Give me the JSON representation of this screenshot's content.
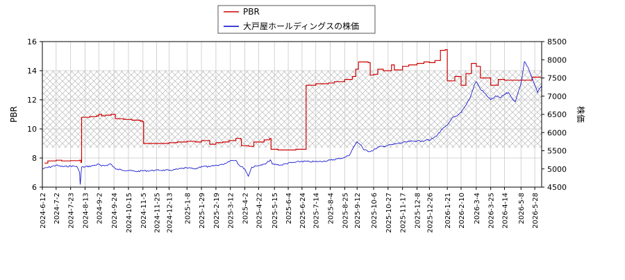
{
  "chart_data": {
    "type": "line",
    "legend": {
      "placement": "top-center",
      "entries": [
        {
          "label": "PBR",
          "color": "#cc0000"
        },
        {
          "label": "大戸屋ホールディングスの株価",
          "color": "#0000cc"
        }
      ]
    },
    "ylabel_left": "PBR",
    "ylabel_right": "株価",
    "ylim_left": [
      6,
      16
    ],
    "ylim_right": [
      4500,
      8500
    ],
    "yticks_left": [
      "6",
      "8",
      "10",
      "12",
      "14",
      "16"
    ],
    "yticks_right": [
      "4500",
      "5000",
      "5500",
      "6000",
      "6500",
      "7000",
      "7500",
      "8000",
      "8500"
    ],
    "grid": true,
    "shaded_band_pbr": [
      8.7,
      14.0
    ],
    "x_range": [
      "2024-06-12",
      "2026-06-07"
    ],
    "xticks": [
      "2024-6-12",
      "2024-7-2",
      "2024-7-23",
      "2024-8-13",
      "2024-9-2",
      "2024-9-24",
      "2024-10-15",
      "2024-11-5",
      "2024-11-25",
      "2024-12-13",
      "2025-1-8",
      "2025-1-29",
      "2025-2-19",
      "2025-3-12",
      "2025-4-2",
      "2025-4-22",
      "2025-5-15",
      "2025-6-4",
      "2025-6-24",
      "2025-7-14",
      "2025-8-4",
      "2025-8-25",
      "2025-9-12",
      "2025-10-6",
      "2025-10-27",
      "2025-11-17",
      "2025-12-8",
      "2025-12-26",
      "2026-1-21",
      "2026-2-10",
      "2026-3-4",
      "2026-3-25",
      "2026-4-14",
      "2026-5-8",
      "2026-5-28"
    ],
    "series": [
      {
        "name": "PBR",
        "axis": "left",
        "color": "#cc0000",
        "points": [
          [
            "2024-06-15",
            7.65
          ],
          [
            "2024-06-20",
            7.8
          ],
          [
            "2024-07-02",
            7.85
          ],
          [
            "2024-07-10",
            7.8
          ],
          [
            "2024-07-23",
            7.82
          ],
          [
            "2024-08-05",
            7.85
          ],
          [
            "2024-08-07",
            7.7
          ],
          [
            "2024-08-08",
            10.8
          ],
          [
            "2024-08-20",
            10.85
          ],
          [
            "2024-08-30",
            10.9
          ],
          [
            "2024-09-02",
            11.0
          ],
          [
            "2024-09-06",
            10.9
          ],
          [
            "2024-09-12",
            10.95
          ],
          [
            "2024-09-20",
            11.0
          ],
          [
            "2024-09-26",
            10.7
          ],
          [
            "2024-10-08",
            10.65
          ],
          [
            "2024-10-20",
            10.6
          ],
          [
            "2024-11-01",
            10.55
          ],
          [
            "2024-11-04",
            10.5
          ],
          [
            "2024-11-06",
            9.0
          ],
          [
            "2024-11-25",
            9.0
          ],
          [
            "2024-12-05",
            9.0
          ],
          [
            "2024-12-13",
            9.05
          ],
          [
            "2024-12-25",
            9.1
          ],
          [
            "2025-01-08",
            9.15
          ],
          [
            "2025-01-20",
            9.1
          ],
          [
            "2025-01-29",
            9.2
          ],
          [
            "2025-02-05",
            9.2
          ],
          [
            "2025-02-10",
            8.95
          ],
          [
            "2025-02-19",
            9.05
          ],
          [
            "2025-03-01",
            9.1
          ],
          [
            "2025-03-10",
            9.2
          ],
          [
            "2025-03-20",
            9.35
          ],
          [
            "2025-03-27",
            9.3
          ],
          [
            "2025-03-28",
            8.85
          ],
          [
            "2025-04-08",
            8.8
          ],
          [
            "2025-04-15",
            9.1
          ],
          [
            "2025-04-30",
            9.25
          ],
          [
            "2025-05-08",
            9.35
          ],
          [
            "2025-05-10",
            8.6
          ],
          [
            "2025-05-20",
            8.55
          ],
          [
            "2025-06-04",
            8.55
          ],
          [
            "2025-06-15",
            8.6
          ],
          [
            "2025-06-28",
            8.6
          ],
          [
            "2025-06-30",
            13.0
          ],
          [
            "2025-07-14",
            13.1
          ],
          [
            "2025-08-01",
            13.15
          ],
          [
            "2025-08-10",
            13.25
          ],
          [
            "2025-08-25",
            13.4
          ],
          [
            "2025-09-05",
            13.6
          ],
          [
            "2025-09-10",
            14.1
          ],
          [
            "2025-09-14",
            14.6
          ],
          [
            "2025-09-28",
            14.55
          ],
          [
            "2025-10-01",
            13.7
          ],
          [
            "2025-10-06",
            13.75
          ],
          [
            "2025-10-12",
            14.1
          ],
          [
            "2025-10-20",
            14.0
          ],
          [
            "2025-10-27",
            14.0
          ],
          [
            "2025-11-01",
            14.4
          ],
          [
            "2025-11-05",
            14.05
          ],
          [
            "2025-11-17",
            14.3
          ],
          [
            "2025-11-26",
            14.4
          ],
          [
            "2025-12-08",
            14.5
          ],
          [
            "2025-12-18",
            14.6
          ],
          [
            "2025-12-26",
            14.55
          ],
          [
            "2026-01-03",
            14.7
          ],
          [
            "2026-01-11",
            15.4
          ],
          [
            "2026-01-18",
            15.45
          ],
          [
            "2026-01-21",
            13.3
          ],
          [
            "2026-02-01",
            13.6
          ],
          [
            "2026-02-10",
            13.0
          ],
          [
            "2026-02-17",
            13.8
          ],
          [
            "2026-02-25",
            14.5
          ],
          [
            "2026-03-04",
            14.3
          ],
          [
            "2026-03-10",
            13.5
          ],
          [
            "2026-03-18",
            13.5
          ],
          [
            "2026-03-25",
            13.0
          ],
          [
            "2026-04-05",
            13.4
          ],
          [
            "2026-04-14",
            13.35
          ],
          [
            "2026-04-25",
            13.35
          ],
          [
            "2026-05-08",
            13.35
          ],
          [
            "2026-05-18",
            13.35
          ],
          [
            "2026-05-24",
            13.55
          ],
          [
            "2026-06-05",
            13.6
          ]
        ]
      },
      {
        "name": "大戸屋ホールディングスの株価",
        "axis": "right",
        "color": "#0000cc",
        "points": [
          [
            "2024-06-12",
            5000
          ],
          [
            "2024-06-20",
            5040
          ],
          [
            "2024-07-02",
            5100
          ],
          [
            "2024-07-12",
            5060
          ],
          [
            "2024-07-23",
            5080
          ],
          [
            "2024-08-01",
            5070
          ],
          [
            "2024-08-05",
            4900
          ],
          [
            "2024-08-06",
            4570
          ],
          [
            "2024-08-08",
            5050
          ],
          [
            "2024-08-13",
            5060
          ],
          [
            "2024-08-22",
            5080
          ],
          [
            "2024-09-02",
            5130
          ],
          [
            "2024-09-06",
            5080
          ],
          [
            "2024-09-13",
            5100
          ],
          [
            "2024-09-19",
            5140
          ],
          [
            "2024-09-27",
            4990
          ],
          [
            "2024-10-15",
            4960
          ],
          [
            "2024-10-25",
            4930
          ],
          [
            "2024-11-05",
            4950
          ],
          [
            "2024-11-15",
            4950
          ],
          [
            "2024-11-25",
            4970
          ],
          [
            "2024-12-13",
            4960
          ],
          [
            "2024-12-25",
            4990
          ],
          [
            "2025-01-08",
            5030
          ],
          [
            "2025-01-20",
            5000
          ],
          [
            "2025-01-29",
            5070
          ],
          [
            "2025-02-10",
            5060
          ],
          [
            "2025-02-19",
            5100
          ],
          [
            "2025-03-01",
            5120
          ],
          [
            "2025-03-12",
            5230
          ],
          [
            "2025-03-20",
            5240
          ],
          [
            "2025-03-25",
            5100
          ],
          [
            "2025-04-02",
            5000
          ],
          [
            "2025-04-07",
            4800
          ],
          [
            "2025-04-12",
            5050
          ],
          [
            "2025-04-22",
            5090
          ],
          [
            "2025-05-02",
            5130
          ],
          [
            "2025-05-09",
            5250
          ],
          [
            "2025-05-12",
            5130
          ],
          [
            "2025-05-25",
            5110
          ],
          [
            "2025-06-04",
            5160
          ],
          [
            "2025-06-14",
            5180
          ],
          [
            "2025-06-24",
            5210
          ],
          [
            "2025-07-05",
            5200
          ],
          [
            "2025-07-14",
            5200
          ],
          [
            "2025-07-25",
            5210
          ],
          [
            "2025-08-04",
            5240
          ],
          [
            "2025-08-15",
            5280
          ],
          [
            "2025-08-25",
            5320
          ],
          [
            "2025-09-01",
            5380
          ],
          [
            "2025-09-07",
            5600
          ],
          [
            "2025-09-12",
            5750
          ],
          [
            "2025-09-18",
            5650
          ],
          [
            "2025-09-22",
            5520
          ],
          [
            "2025-10-01",
            5480
          ],
          [
            "2025-10-06",
            5520
          ],
          [
            "2025-10-13",
            5600
          ],
          [
            "2025-10-20",
            5620
          ],
          [
            "2025-10-27",
            5650
          ],
          [
            "2025-11-03",
            5670
          ],
          [
            "2025-11-10",
            5700
          ],
          [
            "2025-11-17",
            5720
          ],
          [
            "2025-11-27",
            5750
          ],
          [
            "2025-12-08",
            5770
          ],
          [
            "2025-12-15",
            5760
          ],
          [
            "2025-12-22",
            5800
          ],
          [
            "2025-12-26",
            5780
          ],
          [
            "2026-01-05",
            5900
          ],
          [
            "2026-01-14",
            6100
          ],
          [
            "2026-01-21",
            6200
          ],
          [
            "2026-01-28",
            6400
          ],
          [
            "2026-02-04",
            6450
          ],
          [
            "2026-02-10",
            6550
          ],
          [
            "2026-02-17",
            6750
          ],
          [
            "2026-02-24",
            7000
          ],
          [
            "2026-03-01",
            7300
          ],
          [
            "2026-03-04",
            7400
          ],
          [
            "2026-03-10",
            7200
          ],
          [
            "2026-03-18",
            7050
          ],
          [
            "2026-03-25",
            6900
          ],
          [
            "2026-04-02",
            7000
          ],
          [
            "2026-04-08",
            6950
          ],
          [
            "2026-04-14",
            7050
          ],
          [
            "2026-04-20",
            7100
          ],
          [
            "2026-04-25",
            6950
          ],
          [
            "2026-04-30",
            6850
          ],
          [
            "2026-05-03",
            7050
          ],
          [
            "2026-05-08",
            7350
          ],
          [
            "2026-05-11",
            7700
          ],
          [
            "2026-05-13",
            7950
          ],
          [
            "2026-05-18",
            7800
          ],
          [
            "2026-05-24",
            7500
          ],
          [
            "2026-05-28",
            7300
          ],
          [
            "2026-06-01",
            7100
          ],
          [
            "2026-06-07",
            7300
          ]
        ]
      }
    ]
  }
}
